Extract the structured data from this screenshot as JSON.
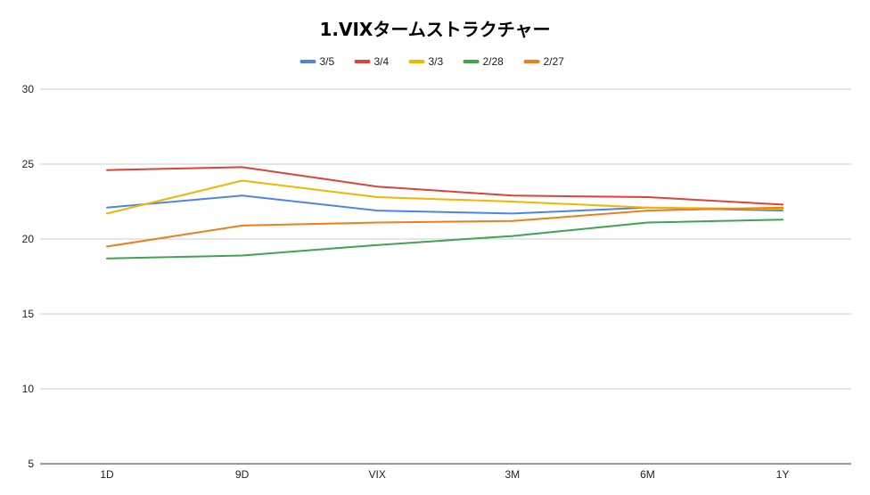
{
  "chart_data": {
    "type": "line",
    "title": "1.VIXタームストラクチャー",
    "xlabel": "",
    "ylabel": "",
    "categories": [
      "1D",
      "9D",
      "VIX",
      "3M",
      "6M",
      "1Y"
    ],
    "ylim": [
      5,
      30
    ],
    "yticks": [
      5,
      10,
      15,
      20,
      25,
      30
    ],
    "grid": true,
    "legend_position": "top",
    "series": [
      {
        "name": "3/5",
        "color": "#4a86e8",
        "values": [
          22.1,
          22.9,
          21.9,
          21.7,
          22.1,
          21.9
        ]
      },
      {
        "name": "3/4",
        "color": "#db4437",
        "values": [
          24.6,
          24.8,
          23.5,
          22.9,
          22.8,
          22.3
        ]
      },
      {
        "name": "3/3",
        "color": "#f4b400",
        "values": [
          21.7,
          23.9,
          22.8,
          22.5,
          22.1,
          22.0
        ]
      },
      {
        "name": "2/28",
        "color": "#3ea54f",
        "values": [
          18.7,
          18.9,
          19.6,
          20.2,
          21.1,
          21.3
        ]
      },
      {
        "name": "2/27",
        "color": "#f07d1a",
        "values": [
          19.5,
          20.9,
          21.1,
          21.2,
          21.9,
          22.1
        ]
      }
    ]
  }
}
